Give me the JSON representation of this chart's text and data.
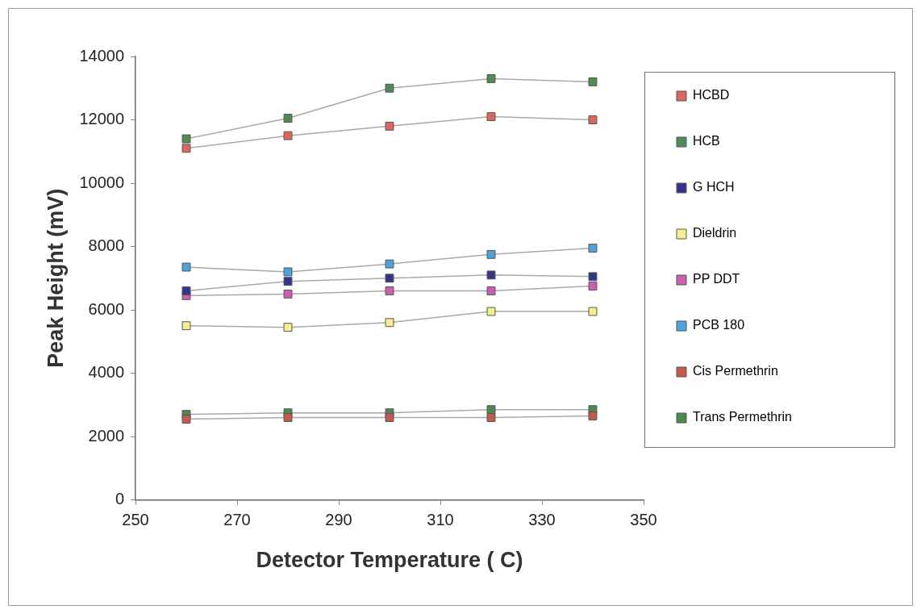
{
  "chart_data": {
    "type": "line",
    "xlabel": "Detector Temperature ( C)",
    "ylabel": "Peak Height (mV)",
    "x": [
      260,
      280,
      300,
      320,
      340
    ],
    "xlim": [
      250,
      350
    ],
    "xticks": [
      250,
      270,
      290,
      310,
      330,
      350
    ],
    "ylim": [
      0,
      14000
    ],
    "yticks": [
      0,
      2000,
      4000,
      6000,
      8000,
      10000,
      12000,
      14000
    ],
    "grid": false,
    "legend": "right",
    "marker": "square",
    "line_style": "solid",
    "series": [
      {
        "name": "HCBD",
        "color": "#dd6660",
        "values": [
          11100,
          11500,
          11800,
          12100,
          12000
        ]
      },
      {
        "name": "HCB",
        "color": "#4e8c52",
        "values": [
          11400,
          12050,
          13000,
          13300,
          13200
        ]
      },
      {
        "name": "G HCH",
        "color": "#35348c",
        "values": [
          6600,
          6900,
          7000,
          7100,
          7050
        ]
      },
      {
        "name": "Dieldrin",
        "color": "#f6ee90",
        "values": [
          5500,
          5450,
          5600,
          5950,
          5950
        ]
      },
      {
        "name": "PP DDT",
        "color": "#cc5fae",
        "values": [
          6450,
          6500,
          6600,
          6600,
          6750
        ]
      },
      {
        "name": "PCB 180",
        "color": "#4ea2de",
        "values": [
          7350,
          7200,
          7450,
          7750,
          7950
        ]
      },
      {
        "name": "Cis Permethrin",
        "color": "#c45a4e",
        "values": [
          2550,
          2600,
          2600,
          2600,
          2650
        ]
      },
      {
        "name": "Trans Permethrin",
        "color": "#4a8a4e",
        "values": [
          2700,
          2750,
          2750,
          2850,
          2850
        ]
      }
    ]
  }
}
